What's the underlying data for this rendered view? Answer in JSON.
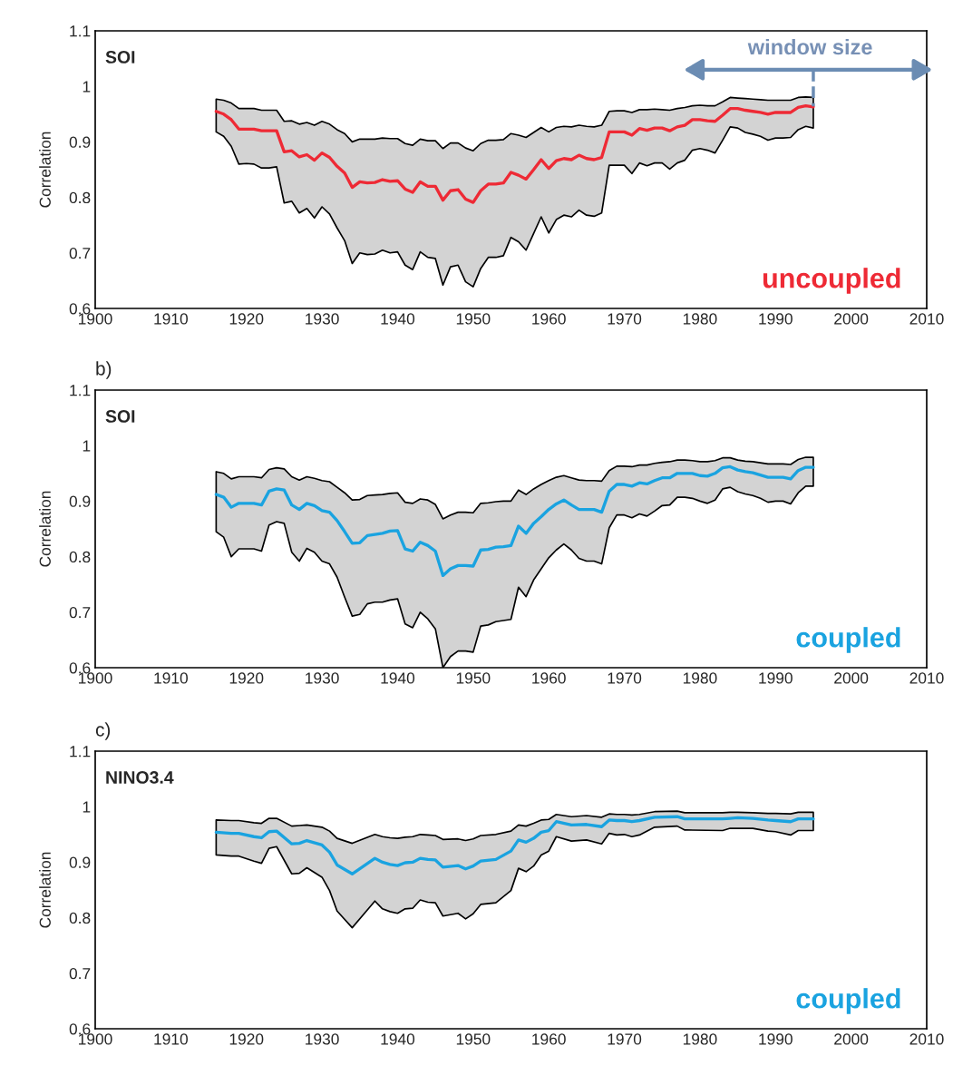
{
  "chart_data": [
    {
      "type": "line",
      "title": "SOI",
      "ylabel": "Correlation",
      "xlim": [
        1900,
        2010
      ],
      "xticks": [
        1900,
        1910,
        1920,
        1930,
        1940,
        1950,
        1960,
        1970,
        1980,
        1990,
        2000,
        2010
      ],
      "ylim": [
        0.6,
        1.1
      ],
      "yticks": [
        0.6,
        0.7,
        0.8,
        0.9,
        1,
        1.1
      ],
      "annotations": [
        "uncoupled",
        {
          "text": "window size",
          "x": 1995,
          "y": 0.964
        }
      ],
      "x": [
        1916,
        1917,
        1918,
        1919,
        1920,
        1921,
        1922,
        1923,
        1924,
        1925,
        1926,
        1927,
        1928,
        1929,
        1930,
        1931,
        1932,
        1933,
        1934,
        1935,
        1936,
        1937,
        1938,
        1939,
        1940,
        1941,
        1942,
        1943,
        1944,
        1945,
        1946,
        1947,
        1948,
        1949,
        1950,
        1951,
        1952,
        1953,
        1954,
        1955,
        1956,
        1957,
        1958,
        1959,
        1960,
        1961,
        1962,
        1963,
        1964,
        1965,
        1966,
        1967,
        1968,
        1969,
        1970,
        1971,
        1972,
        1973,
        1974,
        1975,
        1976,
        1977,
        1978,
        1979,
        1980,
        1981,
        1982,
        1983,
        1984,
        1985,
        1986,
        1987,
        1988,
        1989,
        1990,
        1991,
        1992,
        1993,
        1994,
        1995
      ],
      "series": [
        {
          "color": "#ee2a35",
          "values": [
            0.955,
            0.95,
            0.94,
            0.923,
            0.923,
            0.923,
            0.92,
            0.92,
            0.92,
            0.882,
            0.884,
            0.873,
            0.877,
            0.867,
            0.88,
            0.872,
            0.856,
            0.844,
            0.818,
            0.828,
            0.826,
            0.827,
            0.832,
            0.829,
            0.83,
            0.815,
            0.809,
            0.828,
            0.82,
            0.82,
            0.795,
            0.812,
            0.814,
            0.797,
            0.791,
            0.812,
            0.824,
            0.824,
            0.826,
            0.845,
            0.84,
            0.833,
            0.85,
            0.868,
            0.852,
            0.866,
            0.87,
            0.868,
            0.876,
            0.87,
            0.868,
            0.872,
            0.918,
            0.918,
            0.918,
            0.912,
            0.924,
            0.921,
            0.925,
            0.925,
            0.92,
            0.927,
            0.93,
            0.94,
            0.94,
            0.938,
            0.937,
            0.948,
            0.96,
            0.96,
            0.957,
            0.955,
            0.953,
            0.95,
            0.953,
            0.953,
            0.953,
            0.962,
            0.965,
            0.963
          ],
          "upper": [
            0.977,
            0.975,
            0.97,
            0.96,
            0.96,
            0.96,
            0.957,
            0.957,
            0.957,
            0.937,
            0.938,
            0.932,
            0.935,
            0.93,
            0.937,
            0.932,
            0.922,
            0.915,
            0.9,
            0.905,
            0.905,
            0.905,
            0.907,
            0.906,
            0.906,
            0.897,
            0.894,
            0.905,
            0.902,
            0.902,
            0.888,
            0.898,
            0.898,
            0.889,
            0.884,
            0.897,
            0.903,
            0.903,
            0.904,
            0.915,
            0.912,
            0.908,
            0.917,
            0.926,
            0.918,
            0.926,
            0.928,
            0.927,
            0.93,
            0.928,
            0.927,
            0.93,
            0.955,
            0.956,
            0.956,
            0.953,
            0.958,
            0.958,
            0.959,
            0.958,
            0.957,
            0.96,
            0.962,
            0.965,
            0.966,
            0.965,
            0.965,
            0.972,
            0.98,
            0.979,
            0.978,
            0.977,
            0.976,
            0.975,
            0.975,
            0.975,
            0.975,
            0.98,
            0.981,
            0.98
          ],
          "lower": [
            0.918,
            0.91,
            0.892,
            0.86,
            0.861,
            0.86,
            0.853,
            0.853,
            0.855,
            0.79,
            0.793,
            0.772,
            0.78,
            0.763,
            0.783,
            0.77,
            0.745,
            0.722,
            0.681,
            0.7,
            0.697,
            0.698,
            0.705,
            0.7,
            0.702,
            0.678,
            0.67,
            0.702,
            0.692,
            0.69,
            0.642,
            0.675,
            0.678,
            0.648,
            0.639,
            0.672,
            0.692,
            0.692,
            0.695,
            0.728,
            0.72,
            0.705,
            0.735,
            0.765,
            0.736,
            0.76,
            0.768,
            0.765,
            0.777,
            0.768,
            0.766,
            0.772,
            0.858,
            0.858,
            0.858,
            0.843,
            0.862,
            0.857,
            0.862,
            0.862,
            0.851,
            0.862,
            0.867,
            0.885,
            0.888,
            0.885,
            0.88,
            0.903,
            0.927,
            0.925,
            0.917,
            0.914,
            0.91,
            0.903,
            0.907,
            0.907,
            0.908,
            0.922,
            0.928,
            0.925
          ]
        }
      ]
    },
    {
      "type": "line",
      "title": "SOI",
      "subtitle": "b)",
      "ylabel": "Correlation",
      "xlim": [
        1900,
        2010
      ],
      "xticks": [
        1900,
        1910,
        1920,
        1930,
        1940,
        1950,
        1960,
        1970,
        1980,
        1990,
        2000,
        2010
      ],
      "ylim": [
        0.6,
        1.1
      ],
      "yticks": [
        0.6,
        0.7,
        0.8,
        0.9,
        1,
        1.1
      ],
      "annotations": [
        "coupled"
      ],
      "x": [
        1916,
        1917,
        1918,
        1919,
        1920,
        1921,
        1922,
        1923,
        1924,
        1925,
        1926,
        1927,
        1928,
        1929,
        1930,
        1931,
        1932,
        1933,
        1934,
        1935,
        1936,
        1937,
        1938,
        1939,
        1940,
        1941,
        1942,
        1943,
        1944,
        1945,
        1946,
        1947,
        1948,
        1949,
        1950,
        1951,
        1952,
        1953,
        1954,
        1955,
        1956,
        1957,
        1958,
        1959,
        1960,
        1961,
        1962,
        1963,
        1964,
        1965,
        1966,
        1967,
        1968,
        1969,
        1970,
        1971,
        1972,
        1973,
        1974,
        1975,
        1976,
        1977,
        1978,
        1979,
        1980,
        1981,
        1982,
        1983,
        1984,
        1985,
        1986,
        1987,
        1988,
        1989,
        1990,
        1991,
        1992,
        1993,
        1994,
        1995
      ],
      "series": [
        {
          "color": "#1aa3e0",
          "values": [
            0.912,
            0.907,
            0.889,
            0.896,
            0.896,
            0.896,
            0.893,
            0.918,
            0.922,
            0.92,
            0.893,
            0.885,
            0.896,
            0.892,
            0.883,
            0.88,
            0.865,
            0.845,
            0.824,
            0.825,
            0.838,
            0.84,
            0.842,
            0.846,
            0.847,
            0.814,
            0.81,
            0.826,
            0.82,
            0.81,
            0.766,
            0.778,
            0.784,
            0.784,
            0.783,
            0.812,
            0.813,
            0.817,
            0.818,
            0.82,
            0.855,
            0.842,
            0.86,
            0.872,
            0.885,
            0.895,
            0.902,
            0.893,
            0.885,
            0.885,
            0.885,
            0.88,
            0.918,
            0.93,
            0.93,
            0.927,
            0.933,
            0.931,
            0.937,
            0.942,
            0.942,
            0.95,
            0.95,
            0.95,
            0.946,
            0.945,
            0.95,
            0.96,
            0.962,
            0.956,
            0.953,
            0.951,
            0.947,
            0.943,
            0.943,
            0.943,
            0.94,
            0.955,
            0.961,
            0.961
          ],
          "upper": [
            0.953,
            0.95,
            0.94,
            0.944,
            0.944,
            0.944,
            0.942,
            0.957,
            0.96,
            0.958,
            0.944,
            0.938,
            0.944,
            0.941,
            0.937,
            0.935,
            0.925,
            0.915,
            0.902,
            0.903,
            0.91,
            0.911,
            0.912,
            0.914,
            0.915,
            0.898,
            0.896,
            0.904,
            0.902,
            0.894,
            0.868,
            0.875,
            0.88,
            0.88,
            0.879,
            0.896,
            0.897,
            0.899,
            0.9,
            0.9,
            0.92,
            0.912,
            0.922,
            0.93,
            0.937,
            0.943,
            0.946,
            0.942,
            0.938,
            0.937,
            0.937,
            0.936,
            0.955,
            0.963,
            0.963,
            0.962,
            0.965,
            0.965,
            0.968,
            0.97,
            0.971,
            0.974,
            0.974,
            0.973,
            0.971,
            0.971,
            0.973,
            0.978,
            0.978,
            0.974,
            0.972,
            0.971,
            0.969,
            0.967,
            0.967,
            0.967,
            0.966,
            0.975,
            0.979,
            0.979
          ],
          "lower": [
            0.845,
            0.835,
            0.8,
            0.814,
            0.814,
            0.814,
            0.81,
            0.857,
            0.863,
            0.86,
            0.808,
            0.792,
            0.815,
            0.808,
            0.792,
            0.787,
            0.763,
            0.727,
            0.693,
            0.696,
            0.715,
            0.718,
            0.718,
            0.722,
            0.724,
            0.679,
            0.672,
            0.7,
            0.688,
            0.67,
            0.6,
            0.62,
            0.63,
            0.63,
            0.628,
            0.675,
            0.677,
            0.683,
            0.685,
            0.687,
            0.745,
            0.728,
            0.758,
            0.778,
            0.798,
            0.812,
            0.823,
            0.812,
            0.797,
            0.792,
            0.792,
            0.787,
            0.852,
            0.875,
            0.875,
            0.87,
            0.877,
            0.873,
            0.882,
            0.892,
            0.893,
            0.907,
            0.907,
            0.905,
            0.9,
            0.896,
            0.902,
            0.922,
            0.925,
            0.917,
            0.913,
            0.91,
            0.905,
            0.898,
            0.9,
            0.9,
            0.895,
            0.915,
            0.927,
            0.927
          ]
        }
      ]
    },
    {
      "type": "line",
      "title": "NINO3.4",
      "subtitle": "c)",
      "ylabel": "Correlation",
      "xlim": [
        1900,
        2010
      ],
      "xticks": [
        1900,
        1910,
        1920,
        1930,
        1940,
        1950,
        1960,
        1970,
        1980,
        1990,
        2000,
        2010
      ],
      "ylim": [
        0.6,
        1.1
      ],
      "yticks": [
        0.6,
        0.7,
        0.8,
        0.9,
        1,
        1.1
      ],
      "annotations": [
        "coupled"
      ],
      "x": [
        1916,
        1918,
        1919,
        1921,
        1922,
        1923,
        1924,
        1926,
        1927,
        1928,
        1930,
        1931,
        1932,
        1934,
        1937,
        1938,
        1939,
        1940,
        1941,
        1942,
        1943,
        1944,
        1945,
        1946,
        1948,
        1949,
        1950,
        1951,
        1953,
        1955,
        1956,
        1957,
        1958,
        1959,
        1960,
        1961,
        1963,
        1965,
        1967,
        1968,
        1969,
        1970,
        1971,
        1972,
        1974,
        1977,
        1978,
        1983,
        1984,
        1985,
        1987,
        1989,
        1990,
        1992,
        1993,
        1995
      ],
      "series": [
        {
          "color": "#1aa3e0",
          "values": [
            0.954,
            0.952,
            0.952,
            0.946,
            0.944,
            0.955,
            0.956,
            0.933,
            0.934,
            0.939,
            0.931,
            0.918,
            0.895,
            0.879,
            0.907,
            0.9,
            0.896,
            0.894,
            0.899,
            0.9,
            0.907,
            0.905,
            0.904,
            0.891,
            0.894,
            0.888,
            0.893,
            0.902,
            0.905,
            0.92,
            0.94,
            0.936,
            0.943,
            0.954,
            0.957,
            0.973,
            0.967,
            0.968,
            0.964,
            0.976,
            0.975,
            0.975,
            0.973,
            0.975,
            0.981,
            0.982,
            0.978,
            0.978,
            0.979,
            0.98,
            0.979,
            0.976,
            0.975,
            0.973,
            0.978,
            0.978
          ],
          "upper": [
            0.976,
            0.975,
            0.975,
            0.971,
            0.97,
            0.979,
            0.979,
            0.965,
            0.966,
            0.967,
            0.963,
            0.956,
            0.943,
            0.934,
            0.95,
            0.946,
            0.944,
            0.943,
            0.945,
            0.946,
            0.95,
            0.949,
            0.948,
            0.941,
            0.942,
            0.939,
            0.942,
            0.948,
            0.95,
            0.956,
            0.967,
            0.965,
            0.97,
            0.976,
            0.977,
            0.986,
            0.982,
            0.984,
            0.981,
            0.987,
            0.986,
            0.986,
            0.985,
            0.986,
            0.991,
            0.992,
            0.989,
            0.989,
            0.99,
            0.99,
            0.989,
            0.988,
            0.988,
            0.987,
            0.99,
            0.99
          ],
          "lower": [
            0.913,
            0.911,
            0.911,
            0.902,
            0.898,
            0.925,
            0.928,
            0.879,
            0.88,
            0.89,
            0.873,
            0.849,
            0.812,
            0.782,
            0.83,
            0.816,
            0.811,
            0.808,
            0.816,
            0.817,
            0.832,
            0.828,
            0.827,
            0.803,
            0.808,
            0.798,
            0.807,
            0.824,
            0.827,
            0.849,
            0.889,
            0.883,
            0.893,
            0.913,
            0.92,
            0.946,
            0.938,
            0.94,
            0.933,
            0.952,
            0.949,
            0.95,
            0.946,
            0.949,
            0.963,
            0.965,
            0.958,
            0.957,
            0.961,
            0.961,
            0.961,
            0.956,
            0.955,
            0.949,
            0.957,
            0.957
          ]
        }
      ]
    }
  ]
}
